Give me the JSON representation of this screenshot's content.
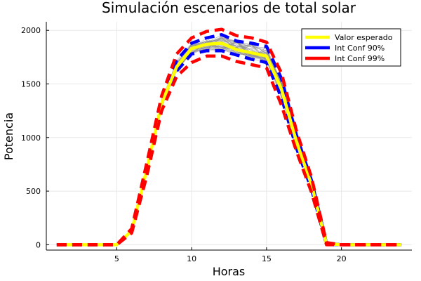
{
  "chart_data": {
    "type": "line",
    "title": "Simulación escenarios de total solar",
    "xlabel": "Horas",
    "ylabel": "Potencia",
    "xlim": [
      0.3,
      24.7
    ],
    "ylim": [
      -50,
      2080
    ],
    "xticks": [
      5,
      10,
      15,
      20
    ],
    "yticks": [
      0,
      500,
      1000,
      1500,
      2000
    ],
    "grid": true,
    "legend_position": "top-right",
    "x": [
      1,
      2,
      3,
      4,
      5,
      6,
      7,
      8,
      9,
      10,
      11,
      12,
      13,
      14,
      15,
      16,
      17,
      18,
      19,
      20,
      21,
      22,
      23,
      24
    ],
    "series": [
      {
        "name": "Valor esperado",
        "color": "#ffff00",
        "style": "solid",
        "values": [
          0,
          0,
          0,
          0,
          0,
          130,
          700,
          1320,
          1660,
          1830,
          1870,
          1880,
          1820,
          1790,
          1760,
          1450,
          960,
          560,
          10,
          0,
          0,
          0,
          0,
          0
        ]
      },
      {
        "name": "Int Conf 90%",
        "color": "#0000ff",
        "style": "dashed",
        "upper": [
          0,
          0,
          0,
          0,
          0,
          140,
          730,
          1360,
          1720,
          1880,
          1930,
          1960,
          1900,
          1880,
          1850,
          1550,
          1020,
          600,
          15,
          0,
          0,
          0,
          0,
          0
        ],
        "lower": [
          0,
          0,
          0,
          0,
          0,
          120,
          680,
          1280,
          1620,
          1780,
          1810,
          1810,
          1770,
          1730,
          1700,
          1370,
          900,
          520,
          5,
          0,
          0,
          0,
          0,
          0
        ]
      },
      {
        "name": "Int Conf 99%",
        "color": "#ff0000",
        "style": "dashed",
        "upper": [
          0,
          0,
          0,
          0,
          0,
          150,
          760,
          1390,
          1780,
          1930,
          1990,
          2010,
          1950,
          1930,
          1890,
          1600,
          1060,
          630,
          20,
          0,
          0,
          0,
          0,
          0
        ],
        "lower": [
          0,
          0,
          0,
          0,
          0,
          110,
          640,
          1250,
          1570,
          1700,
          1760,
          1760,
          1710,
          1680,
          1650,
          1300,
          870,
          490,
          0,
          0,
          0,
          0,
          0,
          0
        ]
      }
    ],
    "scenario_count": 40,
    "scenario_color": "#8c8c8c"
  }
}
